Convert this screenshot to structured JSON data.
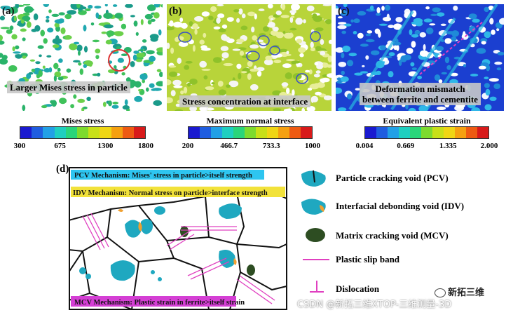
{
  "panels": [
    {
      "label": "(a)",
      "caption": "Larger Mises stress in particle"
    },
    {
      "label": "(b)",
      "caption": "Stress concentration at interface"
    },
    {
      "label": "(c)",
      "caption_line1": "Deformation mismatch",
      "caption_line2": "between ferrite and cementite"
    }
  ],
  "colorbars": [
    {
      "title": "Mises stress",
      "ticks": [
        "300",
        "675",
        "1300",
        "1800"
      ],
      "colors": [
        "#1a1ad0",
        "#1f5de0",
        "#22a0e6",
        "#1fcfc0",
        "#2ad57a",
        "#7ddb2e",
        "#c8e018",
        "#f0d614",
        "#f5a010",
        "#ee5a12",
        "#d81a1a"
      ]
    },
    {
      "title": "Maximum normal stress",
      "ticks": [
        "200",
        "466.7",
        "733.3",
        "1000"
      ],
      "colors": [
        "#1a1ad0",
        "#1f5de0",
        "#22a0e6",
        "#1fcfc0",
        "#2ad57a",
        "#7ddb2e",
        "#c8e018",
        "#f0d614",
        "#f5a010",
        "#ee5a12",
        "#d81a1a"
      ]
    },
    {
      "title": "Equivalent plastic strain",
      "ticks": [
        "0.004",
        "0.669",
        "1.335",
        "2.000"
      ],
      "colors": [
        "#1a1ad0",
        "#1f5de0",
        "#22a0e6",
        "#1fcfc0",
        "#2ad57a",
        "#7ddb2e",
        "#c8e018",
        "#f0d614",
        "#f5a010",
        "#ee5a12",
        "#d81a1a"
      ]
    }
  ],
  "schematic": {
    "label": "(d)",
    "pcv_text": "PCV Mechanism: Mises' stress in particle>itself strength",
    "idv_text": "IDV Mechanism: Normal stress on particle>interface strength",
    "mcv_text": "MCV Mechanism: Plastic strain in ferrite>itself strain",
    "colors": {
      "pcv_bg": "#2ec5f0",
      "idv_bg": "#f2e23a",
      "mcv_bg": "#d43fd4",
      "particle": "#1fa8c0",
      "orange": "#f0a030",
      "void_dark": "#2d4d22",
      "slip": "#e040c0"
    }
  },
  "legend": [
    "Particle cracking void (PCV)",
    "Interfacial debonding void (IDV)",
    "Matrix cracking void (MCV)",
    "Plastic slip band",
    "Dislocation"
  ],
  "watermark": {
    "brand": "新拓三维",
    "credit": "CSDN @新拓三维XTOP-三维测量-3D"
  }
}
